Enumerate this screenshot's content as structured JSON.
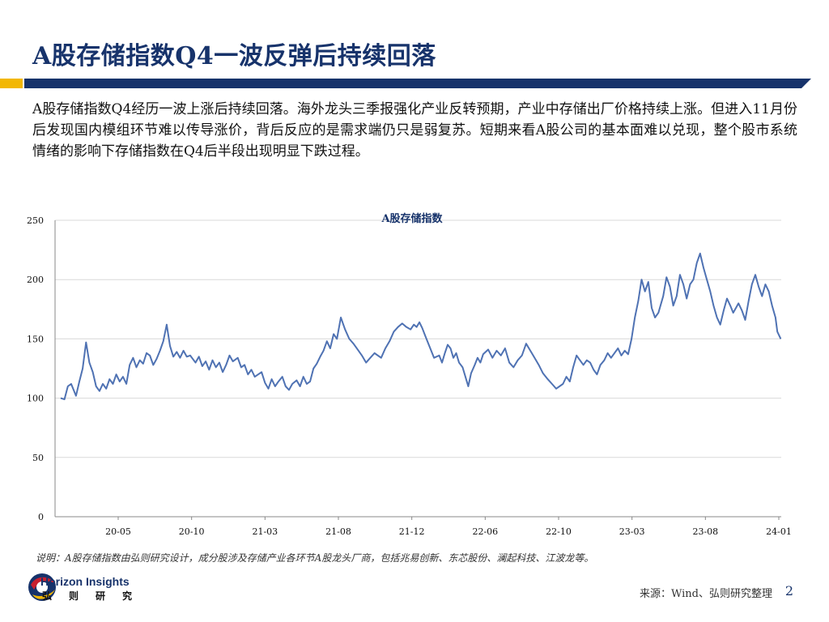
{
  "slide": {
    "title": "A股存储指数Q4一波反弹后持续回落",
    "summary": "A股存储指数Q4经历一波上涨后持续回落。海外龙头三季报强化产业反转预期，产业中存储出厂价格持续上涨。但进入11月份后发现国内模组环节难以传导涨价，背后反应的是需求端仍只是弱复苏。短期来看A股公司的基本面难以兑现，整个股市系统情绪的影响下存储指数在Q4后半段出现明显下跌过程。",
    "note": "说明：A股存储指数由弘则研究设计，成分股涉及存储产业各环节A股龙头厂商，包括兆易创新、东芯股份、澜起科技、江波龙等。",
    "source": "来源：Wind、弘则研究整理",
    "page_number": "2"
  },
  "brand": {
    "name_en": "Horizon Insights",
    "name_cn": "弘则研究",
    "navy": "#17336b",
    "gold": "#f2b705",
    "red": "#c8202f",
    "line_color": "#4f72b3"
  },
  "chart_data": {
    "type": "line",
    "title": "A股存储指数",
    "xlabel": "",
    "ylabel": "",
    "ylim": [
      0,
      250
    ],
    "yticks": [
      0,
      50,
      100,
      150,
      200,
      250
    ],
    "xticks": [
      "20-05",
      "20-10",
      "21-03",
      "21-08",
      "21-12",
      "22-06",
      "22-10",
      "23-03",
      "23-08",
      "24-01"
    ],
    "xlim": [
      "2020-01",
      "2024-01"
    ],
    "grid": "horizontal",
    "legend": "none",
    "series": [
      {
        "values": [
          [
            "2020-01-02",
            100
          ],
          [
            "2020-01-10",
            99
          ],
          [
            "2020-01-17",
            110
          ],
          [
            "2020-01-24",
            112
          ],
          [
            "2020-02-03",
            102
          ],
          [
            "2020-02-10",
            114
          ],
          [
            "2020-02-17",
            125
          ],
          [
            "2020-02-24",
            147
          ],
          [
            "2020-03-02",
            130
          ],
          [
            "2020-03-09",
            122
          ],
          [
            "2020-03-16",
            110
          ],
          [
            "2020-03-23",
            106
          ],
          [
            "2020-03-30",
            112
          ],
          [
            "2020-04-06",
            108
          ],
          [
            "2020-04-13",
            116
          ],
          [
            "2020-04-20",
            112
          ],
          [
            "2020-04-27",
            120
          ],
          [
            "2020-05-04",
            114
          ],
          [
            "2020-05-11",
            118
          ],
          [
            "2020-05-18",
            112
          ],
          [
            "2020-05-25",
            128
          ],
          [
            "2020-06-01",
            134
          ],
          [
            "2020-06-08",
            126
          ],
          [
            "2020-06-15",
            132
          ],
          [
            "2020-06-22",
            129
          ],
          [
            "2020-06-29",
            138
          ],
          [
            "2020-07-06",
            136
          ],
          [
            "2020-07-13",
            128
          ],
          [
            "2020-07-20",
            133
          ],
          [
            "2020-07-27",
            140
          ],
          [
            "2020-08-03",
            148
          ],
          [
            "2020-08-10",
            162
          ],
          [
            "2020-08-17",
            144
          ],
          [
            "2020-08-24",
            135
          ],
          [
            "2020-08-31",
            139
          ],
          [
            "2020-09-07",
            134
          ],
          [
            "2020-09-14",
            140
          ],
          [
            "2020-09-21",
            135
          ],
          [
            "2020-09-28",
            136
          ],
          [
            "2020-10-09",
            130
          ],
          [
            "2020-10-16",
            135
          ],
          [
            "2020-10-23",
            127
          ],
          [
            "2020-10-30",
            131
          ],
          [
            "2020-11-06",
            124
          ],
          [
            "2020-11-13",
            132
          ],
          [
            "2020-11-20",
            126
          ],
          [
            "2020-11-27",
            130
          ],
          [
            "2020-12-04",
            122
          ],
          [
            "2020-12-11",
            128
          ],
          [
            "2020-12-18",
            136
          ],
          [
            "2020-12-25",
            131
          ],
          [
            "2021-01-04",
            134
          ],
          [
            "2021-01-11",
            126
          ],
          [
            "2021-01-18",
            128
          ],
          [
            "2021-01-25",
            120
          ],
          [
            "2021-02-01",
            124
          ],
          [
            "2021-02-08",
            118
          ],
          [
            "2021-02-22",
            122
          ],
          [
            "2021-03-01",
            113
          ],
          [
            "2021-03-08",
            108
          ],
          [
            "2021-03-15",
            116
          ],
          [
            "2021-03-22",
            110
          ],
          [
            "2021-03-29",
            114
          ],
          [
            "2021-04-06",
            118
          ],
          [
            "2021-04-13",
            110
          ],
          [
            "2021-04-20",
            107
          ],
          [
            "2021-04-27",
            112
          ],
          [
            "2021-05-06",
            115
          ],
          [
            "2021-05-13",
            110
          ],
          [
            "2021-05-20",
            118
          ],
          [
            "2021-05-27",
            112
          ],
          [
            "2021-06-03",
            114
          ],
          [
            "2021-06-10",
            125
          ],
          [
            "2021-06-17",
            129
          ],
          [
            "2021-06-24",
            135
          ],
          [
            "2021-07-01",
            140
          ],
          [
            "2021-07-08",
            148
          ],
          [
            "2021-07-15",
            142
          ],
          [
            "2021-07-22",
            154
          ],
          [
            "2021-07-29",
            150
          ],
          [
            "2021-08-05",
            168
          ],
          [
            "2021-08-12",
            158
          ],
          [
            "2021-08-19",
            150
          ],
          [
            "2021-08-26",
            146
          ],
          [
            "2021-09-02",
            141
          ],
          [
            "2021-09-09",
            136
          ],
          [
            "2021-09-16",
            130
          ],
          [
            "2021-09-23",
            134
          ],
          [
            "2021-09-30",
            138
          ],
          [
            "2021-10-11",
            134
          ],
          [
            "2021-10-18",
            142
          ],
          [
            "2021-10-25",
            148
          ],
          [
            "2021-11-01",
            156
          ],
          [
            "2021-11-08",
            160
          ],
          [
            "2021-11-15",
            163
          ],
          [
            "2021-11-22",
            160
          ],
          [
            "2021-11-29",
            158
          ],
          [
            "2021-12-06",
            162
          ],
          [
            "2021-12-13",
            160
          ],
          [
            "2021-12-20",
            164
          ],
          [
            "2021-12-27",
            159
          ],
          [
            "2022-01-04",
            152
          ],
          [
            "2022-01-11",
            146
          ],
          [
            "2022-01-18",
            140
          ],
          [
            "2022-01-25",
            134
          ],
          [
            "2022-02-07",
            136
          ],
          [
            "2022-02-14",
            130
          ],
          [
            "2022-02-21",
            138
          ],
          [
            "2022-02-28",
            145
          ],
          [
            "2022-03-07",
            142
          ],
          [
            "2022-03-14",
            134
          ],
          [
            "2022-03-21",
            138
          ],
          [
            "2022-03-28",
            130
          ],
          [
            "2022-04-06",
            126
          ],
          [
            "2022-04-13",
            118
          ],
          [
            "2022-04-20",
            110
          ],
          [
            "2022-04-27",
            121
          ],
          [
            "2022-05-06",
            128
          ],
          [
            "2022-05-13",
            134
          ],
          [
            "2022-05-20",
            130
          ],
          [
            "2022-05-27",
            137
          ],
          [
            "2022-06-06",
            141
          ],
          [
            "2022-06-13",
            134
          ],
          [
            "2022-06-20",
            140
          ],
          [
            "2022-06-27",
            136
          ],
          [
            "2022-07-04",
            142
          ],
          [
            "2022-07-11",
            130
          ],
          [
            "2022-07-18",
            126
          ],
          [
            "2022-07-25",
            132
          ],
          [
            "2022-08-01",
            136
          ],
          [
            "2022-08-08",
            146
          ],
          [
            "2022-08-15",
            140
          ],
          [
            "2022-08-22",
            134
          ],
          [
            "2022-08-29",
            128
          ],
          [
            "2022-09-05",
            121
          ],
          [
            "2022-09-13",
            116
          ],
          [
            "2022-09-20",
            112
          ],
          [
            "2022-09-27",
            108
          ],
          [
            "2022-10-10",
            112
          ],
          [
            "2022-10-17",
            118
          ],
          [
            "2022-10-24",
            114
          ],
          [
            "2022-10-31",
            126
          ],
          [
            "2022-11-07",
            136
          ],
          [
            "2022-11-14",
            132
          ],
          [
            "2022-11-21",
            128
          ],
          [
            "2022-11-28",
            132
          ],
          [
            "2022-12-05",
            130
          ],
          [
            "2022-12-12",
            124
          ],
          [
            "2022-12-19",
            120
          ],
          [
            "2022-12-26",
            128
          ],
          [
            "2023-01-03",
            132
          ],
          [
            "2023-01-10",
            138
          ],
          [
            "2023-01-17",
            134
          ],
          [
            "2023-01-31",
            142
          ],
          [
            "2023-02-07",
            136
          ],
          [
            "2023-02-14",
            140
          ],
          [
            "2023-02-21",
            137
          ],
          [
            "2023-02-28",
            150
          ],
          [
            "2023-03-07",
            168
          ],
          [
            "2023-03-14",
            182
          ],
          [
            "2023-03-21",
            200
          ],
          [
            "2023-03-28",
            190
          ],
          [
            "2023-04-04",
            198
          ],
          [
            "2023-04-11",
            176
          ],
          [
            "2023-04-18",
            168
          ],
          [
            "2023-04-25",
            172
          ],
          [
            "2023-05-05",
            186
          ],
          [
            "2023-05-12",
            202
          ],
          [
            "2023-05-19",
            194
          ],
          [
            "2023-05-26",
            178
          ],
          [
            "2023-06-02",
            186
          ],
          [
            "2023-06-09",
            204
          ],
          [
            "2023-06-16",
            196
          ],
          [
            "2023-06-23",
            184
          ],
          [
            "2023-06-30",
            196
          ],
          [
            "2023-07-07",
            200
          ],
          [
            "2023-07-14",
            214
          ],
          [
            "2023-07-21",
            222
          ],
          [
            "2023-07-28",
            210
          ],
          [
            "2023-08-04",
            200
          ],
          [
            "2023-08-11",
            190
          ],
          [
            "2023-08-18",
            178
          ],
          [
            "2023-08-25",
            168
          ],
          [
            "2023-09-01",
            162
          ],
          [
            "2023-09-08",
            174
          ],
          [
            "2023-09-15",
            184
          ],
          [
            "2023-09-22",
            178
          ],
          [
            "2023-09-28",
            172
          ],
          [
            "2023-10-09",
            180
          ],
          [
            "2023-10-16",
            174
          ],
          [
            "2023-10-23",
            166
          ],
          [
            "2023-10-30",
            182
          ],
          [
            "2023-11-06",
            196
          ],
          [
            "2023-11-13",
            204
          ],
          [
            "2023-11-20",
            194
          ],
          [
            "2023-11-27",
            186
          ],
          [
            "2023-12-04",
            196
          ],
          [
            "2023-12-11",
            190
          ],
          [
            "2023-12-18",
            178
          ],
          [
            "2023-12-25",
            168
          ],
          [
            "2023-12-29",
            156
          ],
          [
            "2024-01-05",
            150
          ]
        ]
      }
    ]
  }
}
